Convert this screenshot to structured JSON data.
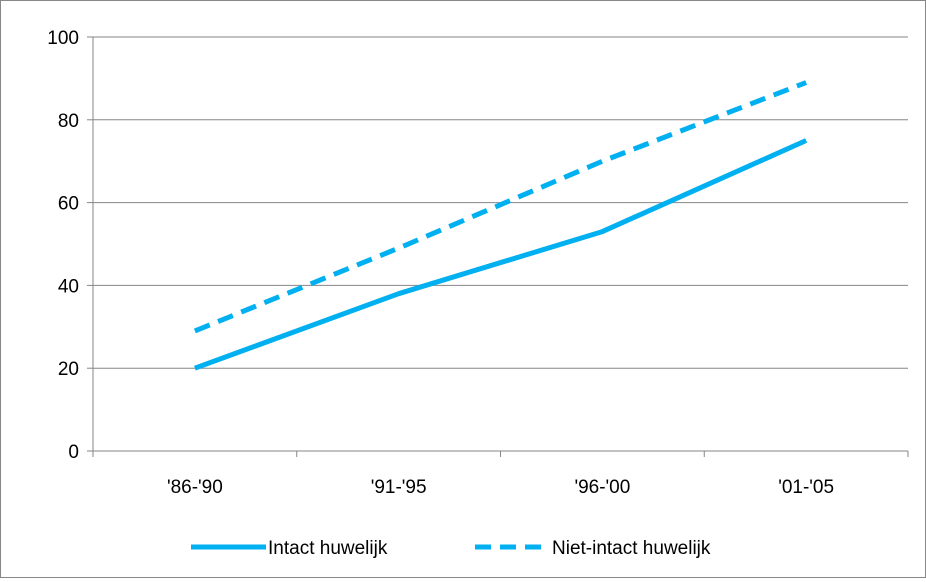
{
  "chart_data": {
    "type": "line",
    "title": "",
    "xlabel": "",
    "ylabel": "",
    "categories": [
      "'86-'90",
      "'91-'95",
      "'96-'00",
      "'01-'05"
    ],
    "ylim": [
      0,
      100
    ],
    "yticks": [
      "0",
      "20",
      "40",
      "60",
      "80",
      "100"
    ],
    "grid": true,
    "legend_position": "bottom",
    "series": [
      {
        "name": "Intact huwelijk",
        "values": [
          20,
          38,
          53,
          75
        ],
        "color": "#00b0f0",
        "style": "solid"
      },
      {
        "name": "Niet-intact huwelijk",
        "values": [
          29,
          49,
          70,
          89
        ],
        "color": "#00b0f0",
        "style": "dashed"
      }
    ]
  }
}
